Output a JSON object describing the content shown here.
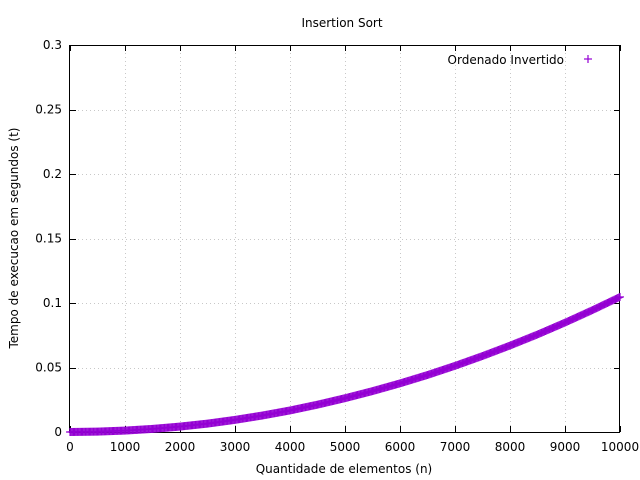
{
  "chart_data": {
    "type": "scatter",
    "title": "Insertion Sort",
    "xlabel": "Quantidade de elementos (n)",
    "ylabel": "Tempo de execucao em segundos (t)",
    "xlim": [
      0,
      10000
    ],
    "ylim": [
      0,
      0.3
    ],
    "xticks": [
      "0",
      "1000",
      "2000",
      "3000",
      "4000",
      "5000",
      "6000",
      "7000",
      "8000",
      "9000",
      "10000"
    ],
    "yticks": [
      "0",
      "0.05",
      "0.1",
      "0.15",
      "0.2",
      "0.25",
      "0.3"
    ],
    "grid": true,
    "legend_position": "top-right",
    "series": [
      {
        "name": "Ordenado Invertido",
        "color": "#9400d3",
        "marker": "plus",
        "x": [
          0,
          500,
          1000,
          1500,
          2000,
          2500,
          3000,
          3500,
          4000,
          4500,
          5000,
          5500,
          6000,
          6500,
          7000,
          7500,
          8000,
          8500,
          9000,
          9500,
          10000
        ],
        "y": [
          0,
          0.0003,
          0.0011,
          0.0024,
          0.0042,
          0.0065,
          0.0094,
          0.0128,
          0.0167,
          0.0212,
          0.0262,
          0.0317,
          0.0377,
          0.0442,
          0.0513,
          0.0589,
          0.067,
          0.0756,
          0.0848,
          0.0945,
          0.1047
        ]
      }
    ]
  }
}
